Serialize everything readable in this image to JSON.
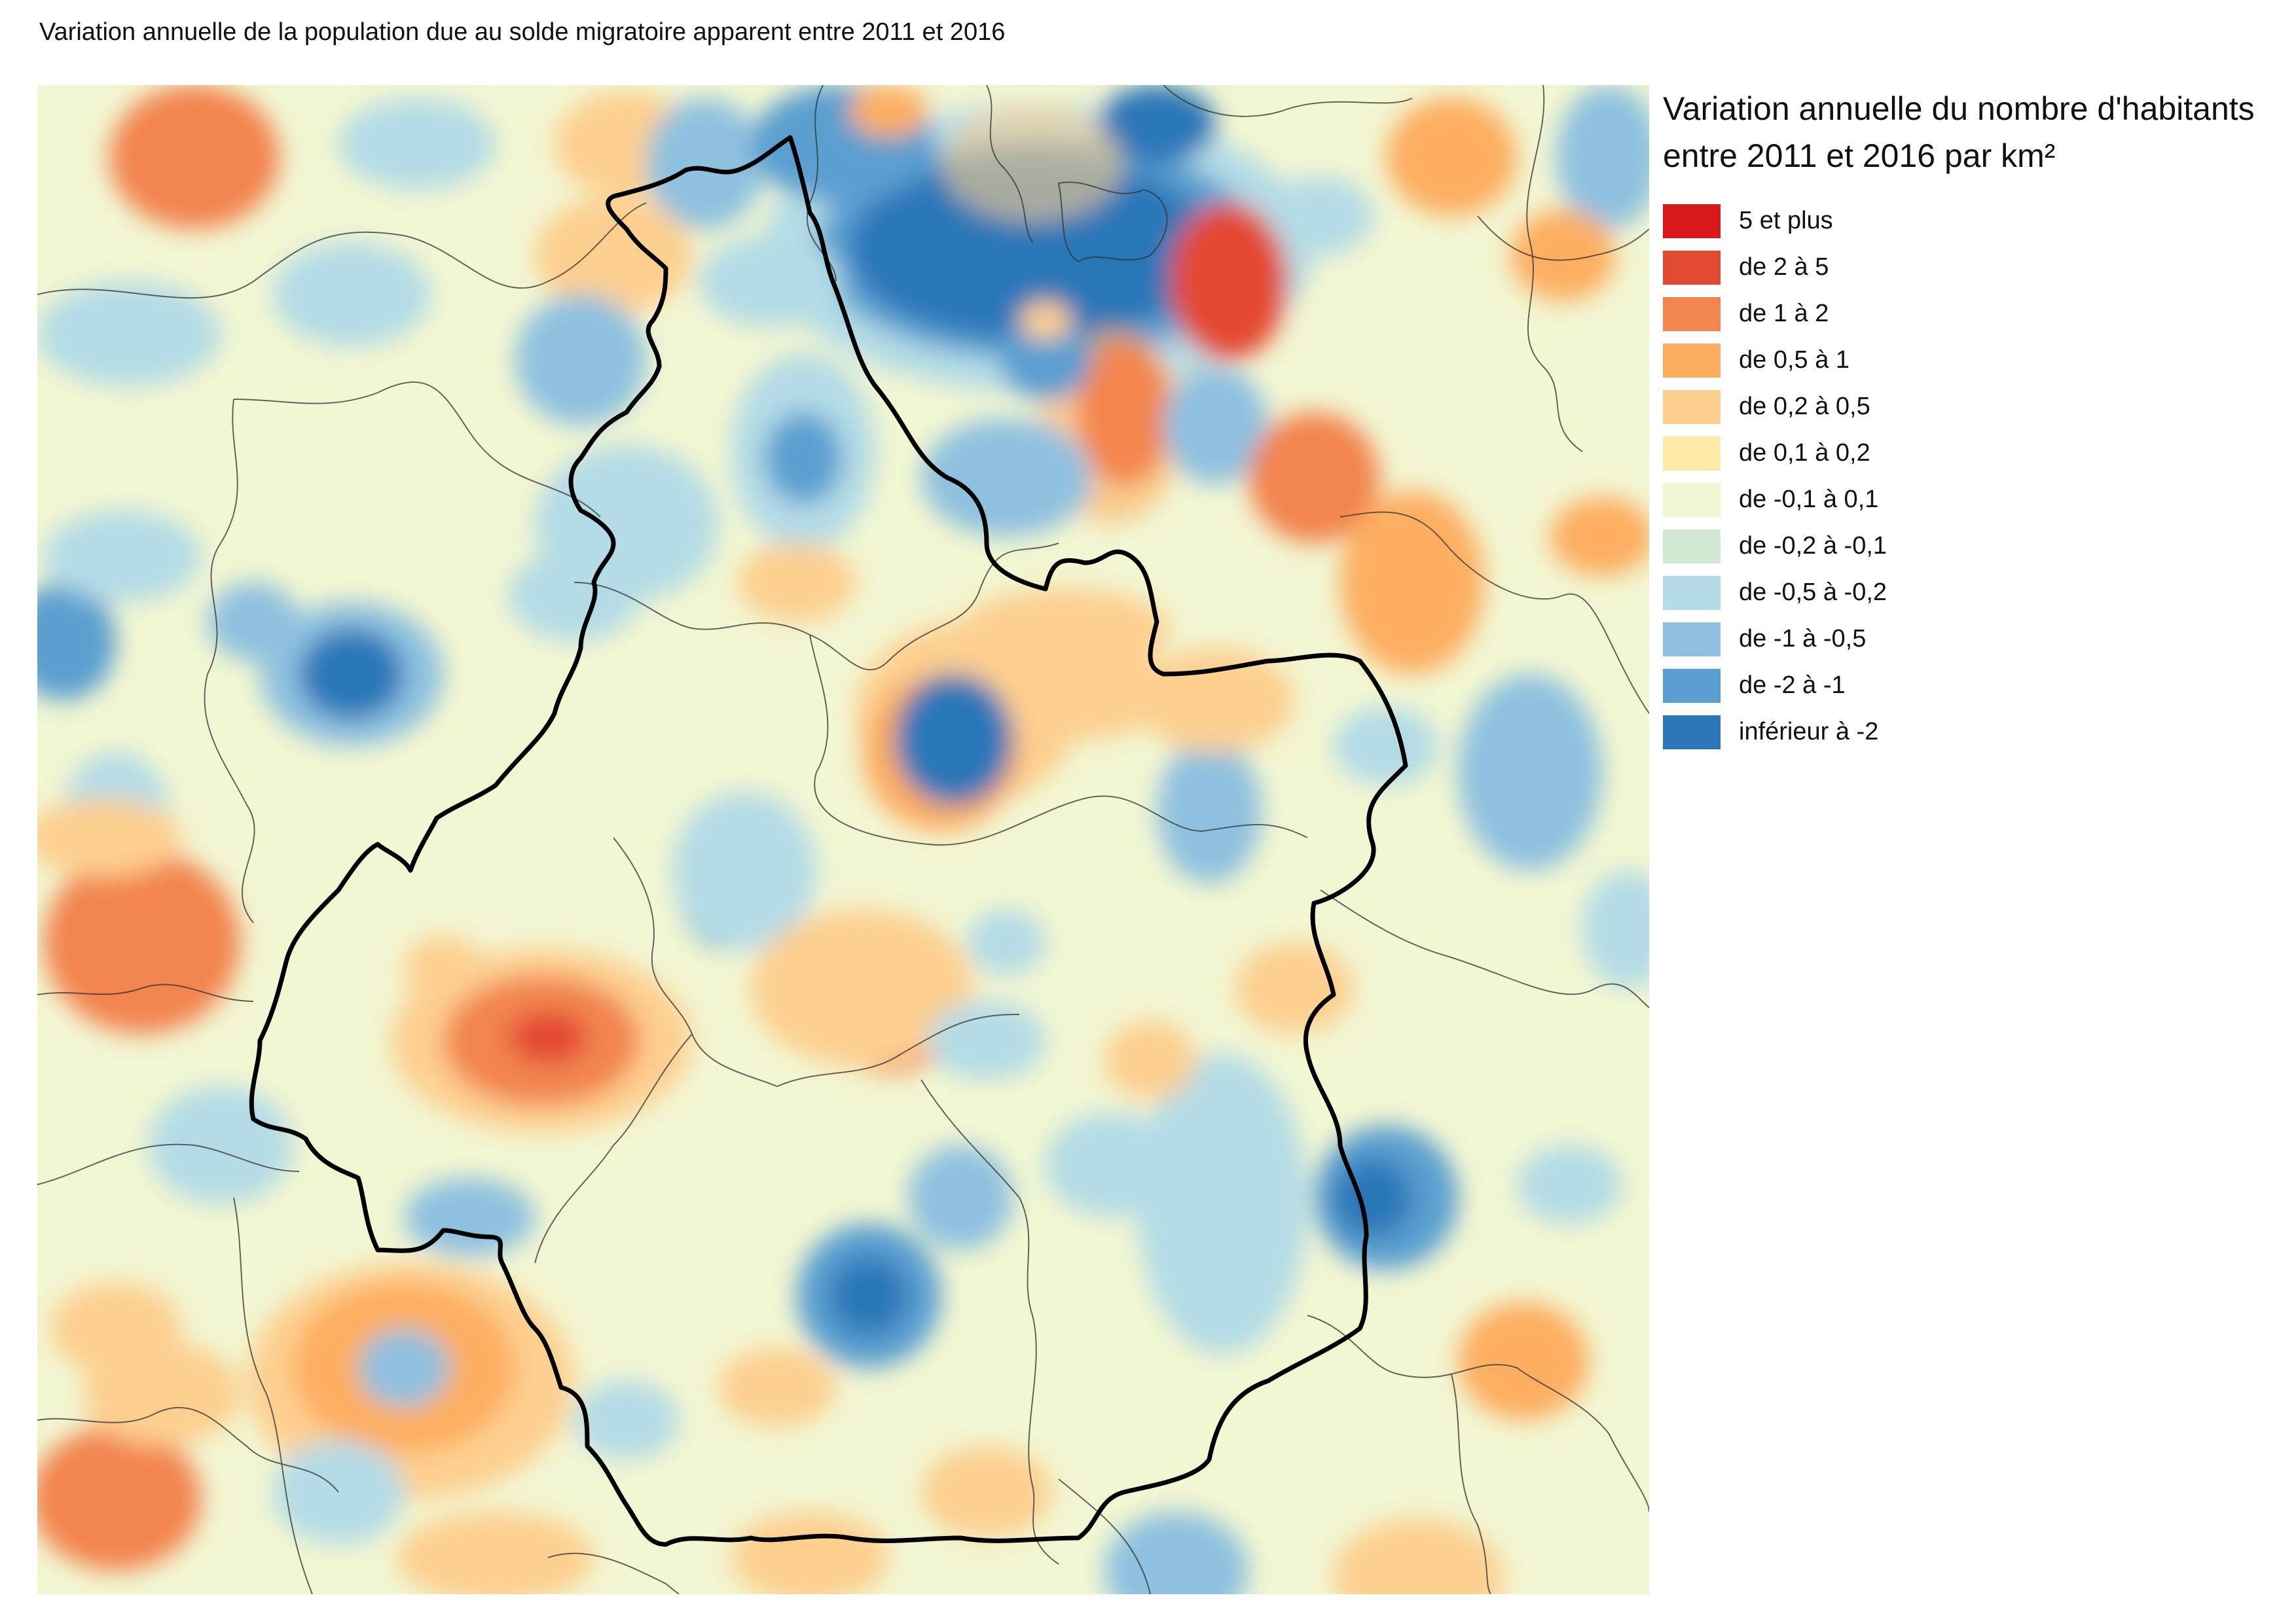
{
  "title": "Variation annuelle de la population due au solde migratoire apparent entre 2011 et 2016",
  "legend": {
    "title_line1": "Variation annuelle du nombre d'habitants",
    "title_line2": "entre 2011 et 2016 par km²",
    "classes": [
      {
        "label": "5 et plus",
        "color": "#d7191c"
      },
      {
        "label": "de 2 à 5",
        "color": "#e34a33"
      },
      {
        "label": "de 1 à 2",
        "color": "#f2844f"
      },
      {
        "label": "de 0,5 à 1",
        "color": "#fdae61"
      },
      {
        "label": "de 0,2 à 0,5",
        "color": "#fdcf8f"
      },
      {
        "label": "de 0,1 à 0,2",
        "color": "#fee9a6"
      },
      {
        "label": "de -0,1 à 0,1",
        "color": "#f2f6d2"
      },
      {
        "label": "de -0,2 à -0,1",
        "color": "#d2e9d4"
      },
      {
        "label": "de -0,5 à -0,2",
        "color": "#b4dbe6"
      },
      {
        "label": "de -1 à -0,5",
        "color": "#8ec1df"
      },
      {
        "label": "de -2 à -1",
        "color": "#5a9fd0"
      },
      {
        "label": "inférieur à -2",
        "color": "#2c77b8"
      }
    ]
  }
}
